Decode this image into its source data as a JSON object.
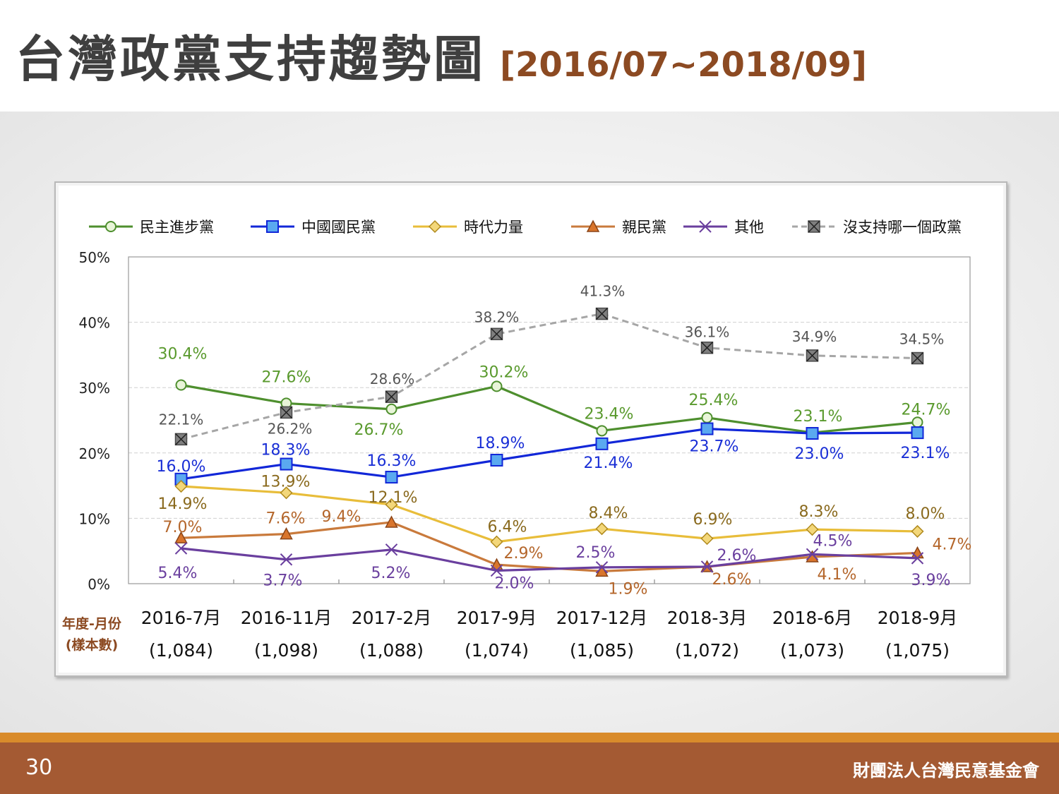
{
  "slide": {
    "title": "台灣政黨支持趨勢圖",
    "range": "[2016/07~2018/09]",
    "page_number": "30",
    "organization": "財團法人台灣民意基金會"
  },
  "chart_data": {
    "type": "line",
    "categories": [
      "2016-7月",
      "2016-11月",
      "2017-2月",
      "2017-9月",
      "2017-12月",
      "2018-3月",
      "2018-6月",
      "2018-9月"
    ],
    "sample_sizes": [
      "(1,084)",
      "(1,098)",
      "(1,088)",
      "(1,074)",
      "(1,085)",
      "(1,072)",
      "(1,073)",
      "(1,075)"
    ],
    "xlabel": "年度-月份",
    "xlabel_sub": "(樣本數)",
    "ylabel": "",
    "ylim": [
      0,
      50
    ],
    "yticks": [
      "0%",
      "10%",
      "20%",
      "30%",
      "40%",
      "50%"
    ],
    "grid": true,
    "legend_position": "top",
    "series": [
      {
        "name": "民主進步黨",
        "color": "#4e8f2e",
        "label_color": "#5a9a2e",
        "marker": "circle",
        "marker_fill": "#e9f5d9",
        "dashed": false,
        "values": [
          30.4,
          27.6,
          26.7,
          30.2,
          23.4,
          25.4,
          23.1,
          24.7
        ],
        "labels": [
          "30.4%",
          "27.6%",
          "26.7%",
          "30.2%",
          "23.4%",
          "25.4%",
          "23.1%",
          "24.7%"
        ]
      },
      {
        "name": "中國國民黨",
        "color": "#1227d8",
        "label_color": "#1a2fd6",
        "marker": "square",
        "marker_fill": "#5aa9f0",
        "dashed": false,
        "values": [
          16.0,
          18.3,
          16.3,
          18.9,
          21.4,
          23.7,
          23.0,
          23.1
        ],
        "labels": [
          "16.0%",
          "18.3%",
          "16.3%",
          "18.9%",
          "21.4%",
          "23.7%",
          "23.0%",
          "23.1%"
        ]
      },
      {
        "name": "時代力量",
        "color": "#e8bd3a",
        "label_color": "#8a6a1e",
        "marker": "diamond",
        "marker_fill": "#f3d77a",
        "dashed": false,
        "values": [
          14.9,
          13.9,
          12.1,
          6.4,
          8.4,
          6.9,
          8.3,
          8.0
        ],
        "labels": [
          "14.9%",
          "13.9%",
          "12.1%",
          "6.4%",
          "8.4%",
          "6.9%",
          "8.3%",
          "8.0%"
        ]
      },
      {
        "name": "親民黨",
        "color": "#c97a3c",
        "label_color": "#b4662b",
        "marker": "triangle",
        "marker_fill": "#d9752c",
        "dashed": false,
        "values": [
          7.0,
          7.6,
          9.4,
          2.9,
          1.9,
          2.6,
          4.1,
          4.7
        ],
        "labels": [
          "7.0%",
          "7.6%",
          "9.4%",
          "2.9%",
          "1.9%",
          "2.6%",
          "4.1%",
          "4.7%"
        ]
      },
      {
        "name": "其他",
        "color": "#6a3f9e",
        "label_color": "#6a3f9e",
        "marker": "x",
        "marker_fill": "#6a3f9e",
        "dashed": false,
        "values": [
          5.4,
          3.7,
          5.2,
          2.0,
          2.5,
          2.6,
          4.5,
          3.9
        ],
        "labels": [
          "5.4%",
          "3.7%",
          "5.2%",
          "2.0%",
          "2.5%",
          "2.6%",
          "4.5%",
          "3.9%"
        ]
      },
      {
        "name": "沒支持哪一個政黨",
        "color": "#a6a6a6",
        "label_color": "#555555",
        "marker": "boxx",
        "marker_fill": "#7f7f7f",
        "dashed": true,
        "values": [
          22.1,
          26.2,
          28.6,
          38.2,
          41.3,
          36.1,
          34.9,
          34.5
        ],
        "labels": [
          "22.1%",
          "26.2%",
          "28.6%",
          "38.2%",
          "41.3%",
          "36.1%",
          "34.9%",
          "34.5%"
        ]
      }
    ]
  }
}
